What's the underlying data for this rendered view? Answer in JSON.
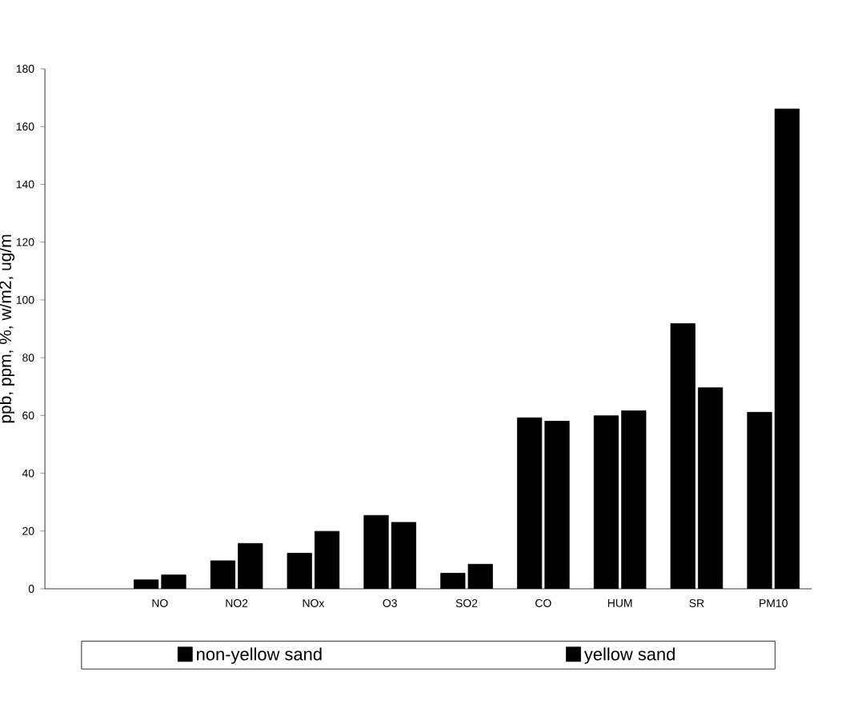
{
  "chart_data": {
    "type": "bar",
    "ylabel": "ppb, ppm, %, w/m2, ug/m",
    "categories": [
      null,
      "NO",
      "NO2",
      "NOx",
      "O3",
      "SO2",
      "CO",
      "HUM",
      "SR",
      "PM10"
    ],
    "series": [
      {
        "name": "non-yellow sand",
        "color": "#000000",
        "values": [
          null,
          3.1,
          9.7,
          12.3,
          25.4,
          5.4,
          59.2,
          59.9,
          91.8,
          61.1
        ]
      },
      {
        "name": "yellow sand",
        "color": "#000000",
        "values": [
          null,
          4.8,
          15.7,
          19.9,
          23.0,
          8.5,
          58.0,
          61.6,
          69.6,
          166.1
        ]
      }
    ],
    "ylim": [
      0,
      180
    ],
    "yticks": [
      0,
      20,
      40,
      60,
      80,
      100,
      120,
      140,
      160,
      180
    ],
    "grid": false,
    "legend": "bottom"
  }
}
